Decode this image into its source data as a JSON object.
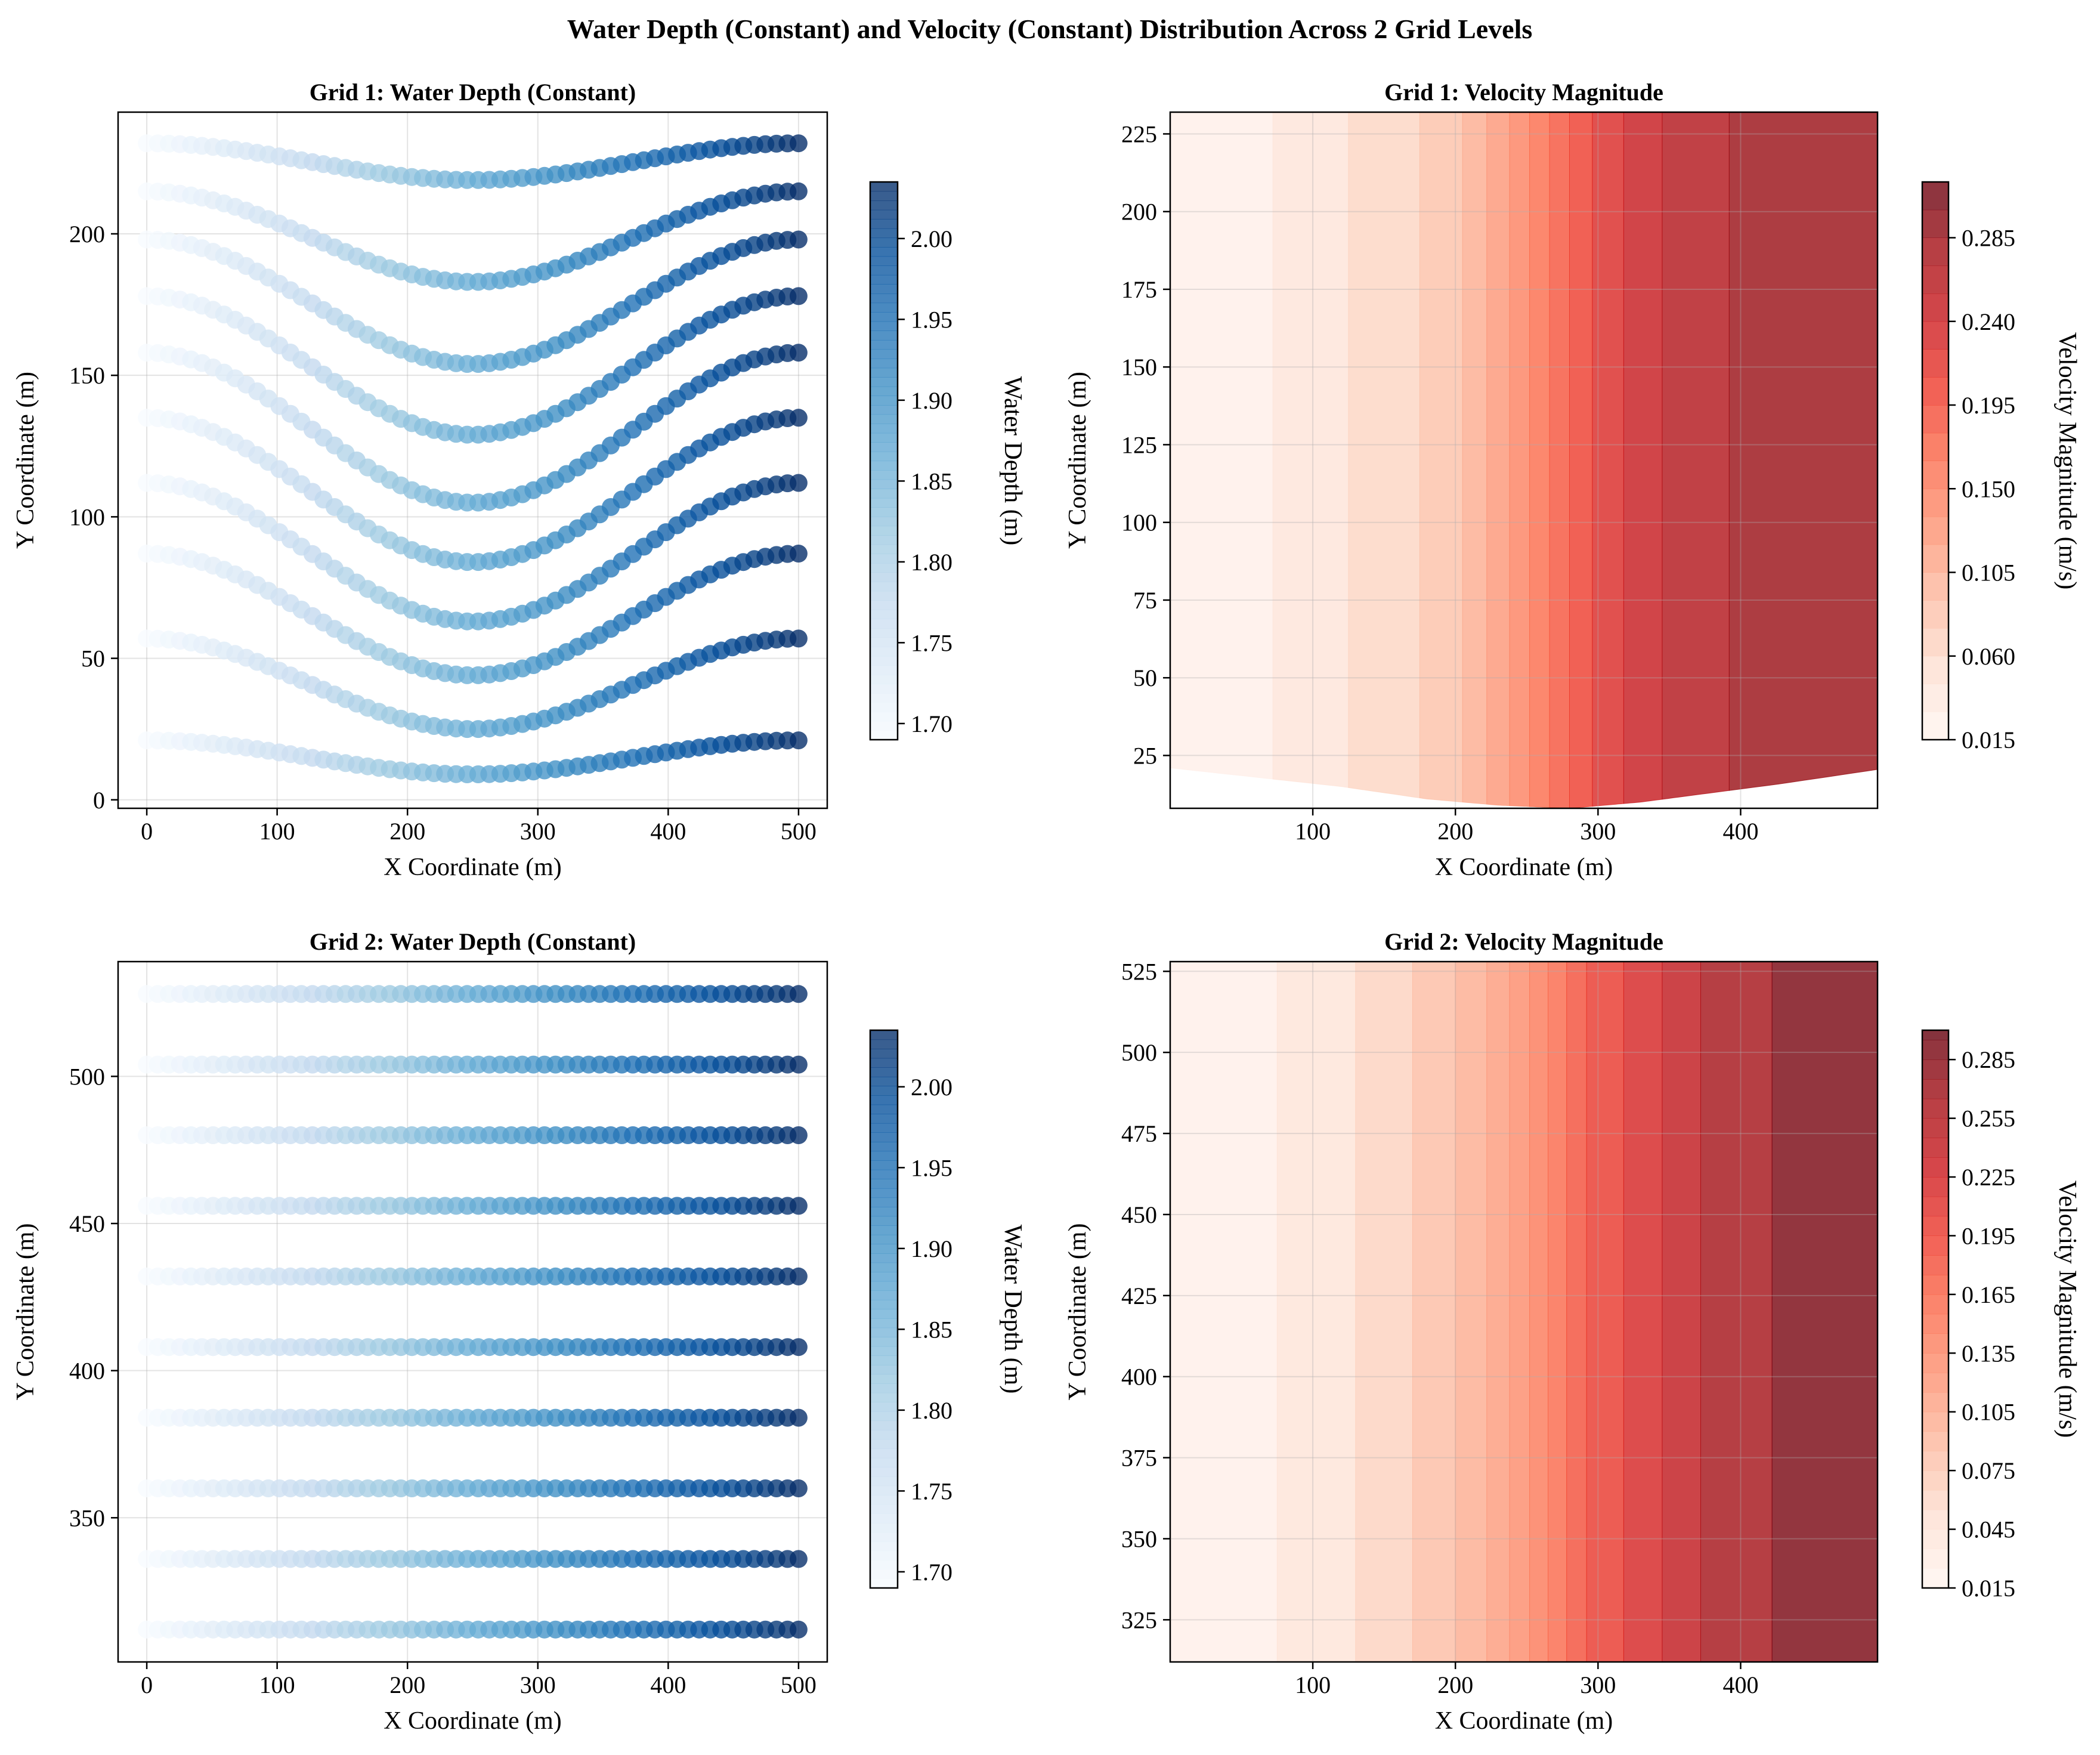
{
  "figure": {
    "title": "Water Depth (Constant) and Velocity (Constant) Distribution Across 2 Grid Levels"
  },
  "colors": {
    "blues": [
      "#f7fbff",
      "#deebf7",
      "#c6dbef",
      "#9ecae1",
      "#6baed6",
      "#4292c6",
      "#2171b5",
      "#08519c",
      "#08306b"
    ],
    "reds": [
      "#fff5f0",
      "#fee0d2",
      "#fcbba1",
      "#fc9272",
      "#fb6a4a",
      "#ef3b2c",
      "#cb181d",
      "#a50f15",
      "#67000d"
    ]
  },
  "chart_data": [
    {
      "id": "grid1-depth",
      "type": "scatter",
      "title": "Grid 1: Water Depth (Constant)",
      "xlabel": "X Coordinate (m)",
      "ylabel": "Y Coordinate (m)",
      "xlim": [
        -22,
        522
      ],
      "ylim": [
        -3,
        243
      ],
      "xticks": [
        0,
        100,
        200,
        300,
        400,
        500
      ],
      "yticks": [
        0,
        50,
        100,
        150,
        200
      ],
      "grid": true,
      "colorbar": {
        "label": "Water Depth (m)",
        "range": [
          1.69,
          2.035
        ],
        "ticks": [
          "1.70",
          "1.75",
          "1.80",
          "1.85",
          "1.90",
          "1.95",
          "2.00"
        ],
        "colormap": "blues"
      },
      "color_by": "x",
      "color_x_range": [
        0,
        500
      ],
      "color_value_range": [
        1.69,
        2.035
      ],
      "x_points": {
        "start": 0,
        "end": 500,
        "count": 60
      },
      "series": [
        {
          "y_left": 232,
          "y_mid": 219,
          "y_right": 232
        },
        {
          "y_left": 215,
          "y_mid": 183,
          "y_right": 215
        },
        {
          "y_left": 198,
          "y_mid": 154,
          "y_right": 198
        },
        {
          "y_left": 178,
          "y_mid": 129,
          "y_right": 178
        },
        {
          "y_left": 158,
          "y_mid": 105,
          "y_right": 158
        },
        {
          "y_left": 135,
          "y_mid": 84,
          "y_right": 135
        },
        {
          "y_left": 112,
          "y_mid": 63,
          "y_right": 112
        },
        {
          "y_left": 87,
          "y_mid": 44,
          "y_right": 87
        },
        {
          "y_left": 57,
          "y_mid": 25,
          "y_right": 57
        },
        {
          "y_left": 21,
          "y_mid": 9,
          "y_right": 21
        }
      ]
    },
    {
      "id": "grid1-velocity",
      "type": "heatmap",
      "title": "Grid 1: Velocity Magnitude",
      "xlabel": "X Coordinate (m)",
      "ylabel": "Y Coordinate (m)",
      "xlim": [
        0,
        496
      ],
      "ylim": [
        8,
        232
      ],
      "xticks": [
        100,
        200,
        300,
        400
      ],
      "yticks": [
        25,
        50,
        75,
        100,
        125,
        150,
        175,
        200,
        225
      ],
      "grid": true,
      "colorbar": {
        "label": "Velocity Magnitude (m/s)",
        "range": [
          0.015,
          0.315
        ],
        "ticks": [
          "0.015",
          "0.060",
          "0.105",
          "0.150",
          "0.195",
          "0.240",
          "0.285"
        ],
        "colormap": "reds"
      },
      "bands": [
        {
          "x0": 0,
          "x1": 72,
          "v": 0.025
        },
        {
          "x0": 72,
          "x1": 125,
          "v": 0.045
        },
        {
          "x0": 125,
          "x1": 175,
          "v": 0.065
        },
        {
          "x0": 175,
          "x1": 205,
          "v": 0.085
        },
        {
          "x0": 205,
          "x1": 222,
          "v": 0.105
        },
        {
          "x0": 222,
          "x1": 238,
          "v": 0.125
        },
        {
          "x0": 238,
          "x1": 252,
          "v": 0.145
        },
        {
          "x0": 252,
          "x1": 266,
          "v": 0.165
        },
        {
          "x0": 266,
          "x1": 280,
          "v": 0.185
        },
        {
          "x0": 280,
          "x1": 296,
          "v": 0.205
        },
        {
          "x0": 296,
          "x1": 318,
          "v": 0.225
        },
        {
          "x0": 318,
          "x1": 345,
          "v": 0.245
        },
        {
          "x0": 345,
          "x1": 392,
          "v": 0.265
        },
        {
          "x0": 392,
          "x1": 496,
          "v": 0.285
        }
      ],
      "boundary_bottom": [
        [
          0,
          21
        ],
        [
          60,
          18
        ],
        [
          120,
          15
        ],
        [
          180,
          11
        ],
        [
          230,
          9
        ],
        [
          280,
          8
        ],
        [
          330,
          10
        ],
        [
          380,
          13
        ],
        [
          430,
          16
        ],
        [
          496,
          20.5
        ]
      ],
      "boundary_top": [
        [
          0,
          232
        ],
        [
          496,
          232
        ]
      ]
    },
    {
      "id": "grid2-depth",
      "type": "scatter",
      "title": "Grid 2: Water Depth (Constant)",
      "xlabel": "X Coordinate (m)",
      "ylabel": "Y Coordinate (m)",
      "xlim": [
        -22,
        522
      ],
      "ylim": [
        301,
        539
      ],
      "xticks": [
        0,
        100,
        200,
        300,
        400,
        500
      ],
      "yticks": [
        350,
        400,
        450,
        500
      ],
      "grid": true,
      "colorbar": {
        "label": "Water Depth (m)",
        "range": [
          1.69,
          2.035
        ],
        "ticks": [
          "1.70",
          "1.75",
          "1.80",
          "1.85",
          "1.90",
          "1.95",
          "2.00"
        ],
        "colormap": "blues"
      },
      "color_by": "x",
      "color_x_range": [
        0,
        500
      ],
      "color_value_range": [
        1.69,
        2.035
      ],
      "x_points": {
        "start": 0,
        "end": 500,
        "count": 60
      },
      "series": [
        {
          "y_left": 312,
          "y_mid": 312,
          "y_right": 312
        },
        {
          "y_left": 336,
          "y_mid": 336,
          "y_right": 336
        },
        {
          "y_left": 360,
          "y_mid": 360,
          "y_right": 360
        },
        {
          "y_left": 384,
          "y_mid": 384,
          "y_right": 384
        },
        {
          "y_left": 408,
          "y_mid": 408,
          "y_right": 408
        },
        {
          "y_left": 432,
          "y_mid": 432,
          "y_right": 432
        },
        {
          "y_left": 456,
          "y_mid": 456,
          "y_right": 456
        },
        {
          "y_left": 480,
          "y_mid": 480,
          "y_right": 480
        },
        {
          "y_left": 504,
          "y_mid": 504,
          "y_right": 504
        },
        {
          "y_left": 528,
          "y_mid": 528,
          "y_right": 528
        }
      ]
    },
    {
      "id": "grid2-velocity",
      "type": "heatmap",
      "title": "Grid 2: Velocity Magnitude",
      "xlabel": "X Coordinate (m)",
      "ylabel": "Y Coordinate (m)",
      "xlim": [
        0,
        496
      ],
      "ylim": [
        312,
        528
      ],
      "xticks": [
        100,
        200,
        300,
        400
      ],
      "yticks": [
        325,
        350,
        375,
        400,
        425,
        450,
        475,
        500,
        525
      ],
      "grid": true,
      "colorbar": {
        "label": "Velocity Magnitude (m/s)",
        "range": [
          0.015,
          0.3
        ],
        "ticks": [
          "0.015",
          "0.045",
          "0.075",
          "0.105",
          "0.135",
          "0.165",
          "0.195",
          "0.225",
          "0.255",
          "0.285"
        ],
        "colormap": "reds"
      },
      "bands": [
        {
          "x0": 0,
          "x1": 75,
          "v": 0.025
        },
        {
          "x0": 75,
          "x1": 130,
          "v": 0.045
        },
        {
          "x0": 130,
          "x1": 170,
          "v": 0.065
        },
        {
          "x0": 170,
          "x1": 200,
          "v": 0.085
        },
        {
          "x0": 200,
          "x1": 222,
          "v": 0.1
        },
        {
          "x0": 222,
          "x1": 238,
          "v": 0.115
        },
        {
          "x0": 238,
          "x1": 252,
          "v": 0.13
        },
        {
          "x0": 252,
          "x1": 265,
          "v": 0.145
        },
        {
          "x0": 265,
          "x1": 278,
          "v": 0.16
        },
        {
          "x0": 278,
          "x1": 292,
          "v": 0.18
        },
        {
          "x0": 292,
          "x1": 318,
          "v": 0.2
        },
        {
          "x0": 318,
          "x1": 345,
          "v": 0.22
        },
        {
          "x0": 345,
          "x1": 372,
          "v": 0.24
        },
        {
          "x0": 372,
          "x1": 422,
          "v": 0.265
        },
        {
          "x0": 422,
          "x1": 496,
          "v": 0.29
        }
      ],
      "boundary_bottom": [
        [
          0,
          312
        ],
        [
          496,
          312
        ]
      ],
      "boundary_top": [
        [
          0,
          528
        ],
        [
          496,
          528
        ]
      ]
    }
  ]
}
